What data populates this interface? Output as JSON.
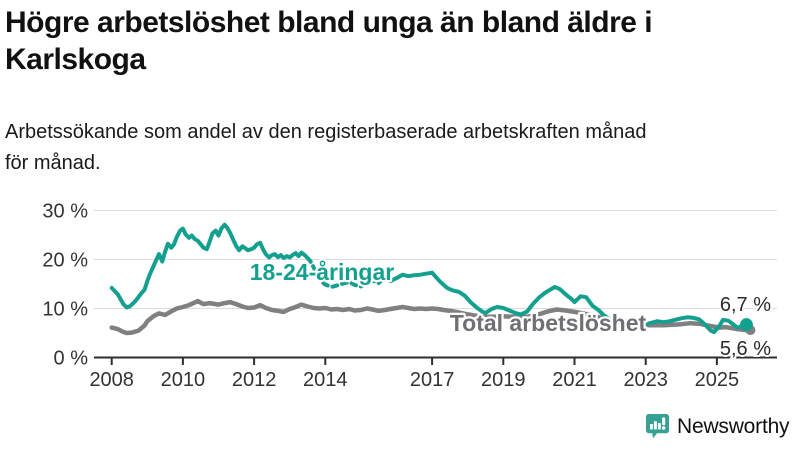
{
  "title_lines": [
    "Högre arbetslöshet bland unga än bland äldre i",
    "Karlskoga"
  ],
  "subtitle_lines": [
    "Arbetssökande som andel av den registerbaserade arbetskraften månad",
    "för månad."
  ],
  "branding": {
    "logo_text": "Newsworthy",
    "logo_icon": "bar-chart-speech-bubble-icon",
    "logo_color": "#36A095"
  },
  "colors": {
    "youth_line": "#14A08F",
    "youth_label": "#14A08F",
    "total_line": "#808083",
    "total_label": "#6F7073",
    "axis": "#2E2E2E",
    "grid": "#DCDCDC",
    "tick_text": "#333333",
    "end_label_text": "#2B2B2B",
    "background": "#FFFFFF"
  },
  "chart_data": {
    "type": "line",
    "title": "Högre arbetslöshet bland unga än bland äldre i Karlskoga",
    "subtitle": "Arbetssökande som andel av den registerbaserade arbetskraften månad för månad.",
    "unit": "%",
    "grid": true,
    "legend_position": "inline-labels",
    "x_axis": {
      "range": [
        2007.5,
        2026.3
      ],
      "tick_years": [
        2008,
        2010,
        2012,
        2014,
        2017,
        2019,
        2021,
        2023,
        2025
      ],
      "tick_labels": [
        "2008",
        "2010",
        "2012",
        "2014",
        "2017",
        "2019",
        "2021",
        "2023",
        "2025"
      ]
    },
    "y_axis": {
      "range": [
        0,
        30
      ],
      "tick_values": [
        0,
        10,
        20,
        30
      ],
      "tick_labels": [
        "0 %",
        "10 %",
        "20 %",
        "30 %"
      ]
    },
    "series": [
      {
        "name": "Total arbetslöshet",
        "inline_label": "Total arbetslöshet",
        "color_key": "total",
        "end_value": 5.6,
        "end_label": "5,6 %",
        "end_marker": "dot",
        "points": [
          [
            2008.0,
            6.1
          ],
          [
            2008.17,
            5.8
          ],
          [
            2008.33,
            5.2
          ],
          [
            2008.42,
            5.0
          ],
          [
            2008.58,
            5.1
          ],
          [
            2008.75,
            5.5
          ],
          [
            2008.92,
            6.5
          ],
          [
            2009.0,
            7.4
          ],
          [
            2009.17,
            8.4
          ],
          [
            2009.33,
            9.0
          ],
          [
            2009.5,
            8.7
          ],
          [
            2009.67,
            9.4
          ],
          [
            2009.83,
            10.0
          ],
          [
            2010.0,
            10.3
          ],
          [
            2010.17,
            10.7
          ],
          [
            2010.33,
            11.2
          ],
          [
            2010.42,
            11.5
          ],
          [
            2010.58,
            10.9
          ],
          [
            2010.75,
            11.1
          ],
          [
            2010.92,
            10.9
          ],
          [
            2011.0,
            10.8
          ],
          [
            2011.17,
            11.1
          ],
          [
            2011.33,
            11.3
          ],
          [
            2011.5,
            10.9
          ],
          [
            2011.67,
            10.4
          ],
          [
            2011.83,
            10.1
          ],
          [
            2012.0,
            10.2
          ],
          [
            2012.17,
            10.7
          ],
          [
            2012.33,
            10.1
          ],
          [
            2012.5,
            9.7
          ],
          [
            2012.67,
            9.5
          ],
          [
            2012.83,
            9.3
          ],
          [
            2013.0,
            9.9
          ],
          [
            2013.17,
            10.3
          ],
          [
            2013.33,
            10.8
          ],
          [
            2013.5,
            10.4
          ],
          [
            2013.67,
            10.1
          ],
          [
            2013.83,
            10.0
          ],
          [
            2014.0,
            10.1
          ],
          [
            2014.17,
            9.8
          ],
          [
            2014.33,
            9.9
          ],
          [
            2014.5,
            9.7
          ],
          [
            2014.67,
            9.9
          ],
          [
            2014.83,
            9.6
          ],
          [
            2015.0,
            9.7
          ],
          [
            2015.17,
            10.0
          ],
          [
            2015.33,
            9.8
          ],
          [
            2015.5,
            9.5
          ],
          [
            2015.67,
            9.7
          ],
          [
            2015.83,
            9.9
          ],
          [
            2016.0,
            10.1
          ],
          [
            2016.17,
            10.3
          ],
          [
            2016.33,
            10.1
          ],
          [
            2016.5,
            9.9
          ],
          [
            2016.67,
            10.0
          ],
          [
            2016.83,
            9.9
          ],
          [
            2017.0,
            10.0
          ],
          [
            2017.17,
            9.9
          ],
          [
            2017.33,
            9.7
          ],
          [
            2017.5,
            9.5
          ],
          [
            2017.75,
            9.2
          ],
          [
            2018.0,
            8.8
          ],
          [
            2018.25,
            8.5
          ],
          [
            2018.5,
            8.3
          ],
          [
            2018.75,
            8.3
          ],
          [
            2019.0,
            8.4
          ],
          [
            2019.25,
            8.3
          ],
          [
            2019.5,
            8.2
          ],
          [
            2019.75,
            8.4
          ],
          [
            2020.0,
            8.8
          ],
          [
            2020.25,
            9.4
          ],
          [
            2020.5,
            9.8
          ],
          [
            2020.75,
            9.6
          ],
          [
            2021.0,
            9.3
          ],
          [
            2021.25,
            9.0
          ],
          [
            2021.5,
            8.6
          ],
          [
            2021.75,
            8.1
          ],
          [
            2022.0,
            7.6
          ],
          [
            2022.17,
            7.3
          ],
          [
            2022.33,
            7.0
          ],
          [
            2022.5,
            6.8
          ],
          [
            2022.67,
            6.6
          ],
          [
            2022.83,
            6.5
          ],
          [
            2023.0,
            6.6
          ],
          [
            2023.25,
            6.6
          ],
          [
            2023.5,
            6.6
          ],
          [
            2023.75,
            6.7
          ],
          [
            2024.0,
            6.8
          ],
          [
            2024.25,
            7.0
          ],
          [
            2024.5,
            6.9
          ],
          [
            2024.75,
            6.5
          ],
          [
            2024.92,
            6.3
          ],
          [
            2025.08,
            6.1
          ],
          [
            2025.25,
            6.2
          ],
          [
            2025.42,
            6.0
          ],
          [
            2025.58,
            5.8
          ],
          [
            2025.83,
            5.6
          ]
        ]
      },
      {
        "name": "18-24-åringar",
        "inline_label": "18-24-åringar",
        "color_key": "youth",
        "dashed_segment": [
          2013.55,
          2015.45
        ],
        "end_value": 6.7,
        "end_label": "6,7 %",
        "end_marker": "dot",
        "points": [
          [
            2008.0,
            14.2
          ],
          [
            2008.08,
            13.6
          ],
          [
            2008.17,
            12.9
          ],
          [
            2008.25,
            11.9
          ],
          [
            2008.33,
            10.9
          ],
          [
            2008.42,
            10.2
          ],
          [
            2008.5,
            10.4
          ],
          [
            2008.58,
            10.9
          ],
          [
            2008.67,
            11.6
          ],
          [
            2008.75,
            12.3
          ],
          [
            2008.83,
            13.1
          ],
          [
            2008.92,
            13.8
          ],
          [
            2009.0,
            15.6
          ],
          [
            2009.08,
            17.1
          ],
          [
            2009.17,
            18.6
          ],
          [
            2009.25,
            19.9
          ],
          [
            2009.33,
            21.1
          ],
          [
            2009.42,
            19.6
          ],
          [
            2009.5,
            21.6
          ],
          [
            2009.58,
            23.2
          ],
          [
            2009.67,
            22.4
          ],
          [
            2009.75,
            23.1
          ],
          [
            2009.83,
            24.6
          ],
          [
            2009.92,
            25.9
          ],
          [
            2010.0,
            26.3
          ],
          [
            2010.08,
            25.1
          ],
          [
            2010.17,
            24.4
          ],
          [
            2010.25,
            24.9
          ],
          [
            2010.33,
            24.2
          ],
          [
            2010.42,
            23.8
          ],
          [
            2010.5,
            23.1
          ],
          [
            2010.58,
            22.4
          ],
          [
            2010.67,
            22.1
          ],
          [
            2010.75,
            23.6
          ],
          [
            2010.83,
            25.3
          ],
          [
            2010.92,
            25.9
          ],
          [
            2011.0,
            24.9
          ],
          [
            2011.08,
            26.3
          ],
          [
            2011.17,
            27.1
          ],
          [
            2011.25,
            26.4
          ],
          [
            2011.33,
            25.4
          ],
          [
            2011.42,
            23.9
          ],
          [
            2011.5,
            22.7
          ],
          [
            2011.58,
            21.9
          ],
          [
            2011.67,
            22.7
          ],
          [
            2011.75,
            22.3
          ],
          [
            2011.83,
            21.9
          ],
          [
            2011.92,
            22.1
          ],
          [
            2012.0,
            22.4
          ],
          [
            2012.08,
            23.1
          ],
          [
            2012.17,
            23.4
          ],
          [
            2012.25,
            22.1
          ],
          [
            2012.33,
            21.1
          ],
          [
            2012.42,
            20.4
          ],
          [
            2012.5,
            20.9
          ],
          [
            2012.58,
            21.1
          ],
          [
            2012.67,
            20.5
          ],
          [
            2012.75,
            20.9
          ],
          [
            2012.83,
            20.3
          ],
          [
            2012.92,
            20.7
          ],
          [
            2013.0,
            20.4
          ],
          [
            2013.08,
            20.9
          ],
          [
            2013.17,
            21.3
          ],
          [
            2013.25,
            20.7
          ],
          [
            2013.33,
            21.4
          ],
          [
            2013.42,
            20.9
          ],
          [
            2013.5,
            20.3
          ],
          [
            2013.58,
            19.7
          ],
          [
            2013.67,
            18.4
          ],
          [
            2013.75,
            17.2
          ],
          [
            2013.83,
            16.1
          ],
          [
            2013.92,
            15.3
          ],
          [
            2014.0,
            14.9
          ],
          [
            2014.17,
            14.4
          ],
          [
            2014.33,
            14.7
          ],
          [
            2014.5,
            15.1
          ],
          [
            2014.67,
            15.4
          ],
          [
            2014.83,
            14.8
          ],
          [
            2015.0,
            14.5
          ],
          [
            2015.17,
            15.3
          ],
          [
            2015.33,
            15.7
          ],
          [
            2015.5,
            15.2
          ],
          [
            2015.67,
            16.3
          ],
          [
            2015.83,
            15.6
          ],
          [
            2016.0,
            16.2
          ],
          [
            2016.17,
            16.9
          ],
          [
            2016.33,
            16.6
          ],
          [
            2016.5,
            16.8
          ],
          [
            2016.67,
            16.9
          ],
          [
            2016.83,
            17.1
          ],
          [
            2017.0,
            17.3
          ],
          [
            2017.17,
            15.9
          ],
          [
            2017.25,
            15.3
          ],
          [
            2017.42,
            14.2
          ],
          [
            2017.58,
            13.7
          ],
          [
            2017.75,
            13.4
          ],
          [
            2017.92,
            12.6
          ],
          [
            2018.08,
            11.3
          ],
          [
            2018.25,
            10.2
          ],
          [
            2018.42,
            9.3
          ],
          [
            2018.5,
            9.1
          ],
          [
            2018.67,
            9.9
          ],
          [
            2018.83,
            10.3
          ],
          [
            2019.0,
            10.1
          ],
          [
            2019.17,
            9.6
          ],
          [
            2019.33,
            9.1
          ],
          [
            2019.5,
            8.8
          ],
          [
            2019.67,
            9.4
          ],
          [
            2019.83,
            10.9
          ],
          [
            2020.0,
            12.2
          ],
          [
            2020.17,
            13.2
          ],
          [
            2020.33,
            13.9
          ],
          [
            2020.45,
            14.4
          ],
          [
            2020.58,
            14.0
          ],
          [
            2020.75,
            12.9
          ],
          [
            2020.92,
            11.9
          ],
          [
            2021.0,
            11.3
          ],
          [
            2021.17,
            12.5
          ],
          [
            2021.33,
            12.3
          ],
          [
            2021.5,
            10.6
          ],
          [
            2021.67,
            9.7
          ],
          [
            2021.83,
            8.6
          ],
          [
            2022.0,
            7.7
          ],
          [
            2022.17,
            7.5
          ],
          [
            2022.33,
            7.7
          ],
          [
            2022.5,
            7.3
          ],
          [
            2022.67,
            6.8
          ],
          [
            2022.83,
            6.4
          ],
          [
            2023.0,
            6.8
          ],
          [
            2023.17,
            7.1
          ],
          [
            2023.33,
            7.4
          ],
          [
            2023.5,
            7.2
          ],
          [
            2023.67,
            7.4
          ],
          [
            2023.83,
            7.7
          ],
          [
            2024.0,
            8.0
          ],
          [
            2024.17,
            8.2
          ],
          [
            2024.33,
            8.1
          ],
          [
            2024.5,
            7.8
          ],
          [
            2024.67,
            6.7
          ],
          [
            2024.83,
            5.5
          ],
          [
            2024.92,
            5.2
          ],
          [
            2025.08,
            6.5
          ],
          [
            2025.17,
            7.7
          ],
          [
            2025.33,
            7.5
          ],
          [
            2025.5,
            6.5
          ],
          [
            2025.58,
            6.1
          ],
          [
            2025.83,
            6.7
          ]
        ]
      }
    ]
  }
}
